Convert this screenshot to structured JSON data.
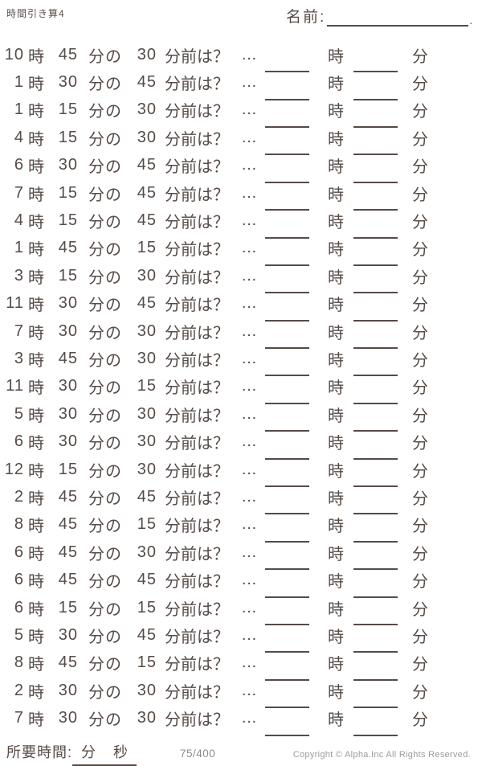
{
  "colors": {
    "ink": "#554b47",
    "muted": "#9c9c9c"
  },
  "header": {
    "title": "時間引き算4",
    "name_label": "名前:",
    "name_period": "."
  },
  "labels": {
    "hour_unit": "時",
    "minute_no": "分の",
    "minutes_before": "分前は？",
    "ellipsis": "…",
    "minute_unit": "分"
  },
  "problems": [
    {
      "hour": 10,
      "minute": 45,
      "subtract": 30
    },
    {
      "hour": 1,
      "minute": 30,
      "subtract": 45
    },
    {
      "hour": 1,
      "minute": 15,
      "subtract": 30
    },
    {
      "hour": 4,
      "minute": 15,
      "subtract": 30
    },
    {
      "hour": 6,
      "minute": 30,
      "subtract": 45
    },
    {
      "hour": 7,
      "minute": 15,
      "subtract": 45
    },
    {
      "hour": 4,
      "minute": 15,
      "subtract": 45
    },
    {
      "hour": 1,
      "minute": 45,
      "subtract": 15
    },
    {
      "hour": 3,
      "minute": 15,
      "subtract": 30
    },
    {
      "hour": 11,
      "minute": 30,
      "subtract": 45
    },
    {
      "hour": 7,
      "minute": 30,
      "subtract": 30
    },
    {
      "hour": 3,
      "minute": 45,
      "subtract": 30
    },
    {
      "hour": 11,
      "minute": 30,
      "subtract": 15
    },
    {
      "hour": 5,
      "minute": 30,
      "subtract": 30
    },
    {
      "hour": 6,
      "minute": 30,
      "subtract": 30
    },
    {
      "hour": 12,
      "minute": 15,
      "subtract": 30
    },
    {
      "hour": 2,
      "minute": 45,
      "subtract": 45
    },
    {
      "hour": 8,
      "minute": 45,
      "subtract": 15
    },
    {
      "hour": 6,
      "minute": 45,
      "subtract": 30
    },
    {
      "hour": 6,
      "minute": 45,
      "subtract": 45
    },
    {
      "hour": 6,
      "minute": 15,
      "subtract": 15
    },
    {
      "hour": 5,
      "minute": 30,
      "subtract": 45
    },
    {
      "hour": 8,
      "minute": 45,
      "subtract": 15
    },
    {
      "hour": 2,
      "minute": 30,
      "subtract": 30
    },
    {
      "hour": 7,
      "minute": 30,
      "subtract": 30
    }
  ],
  "footer": {
    "time_label": "所要時間:",
    "minutes_label": "分",
    "seconds_label": "秒",
    "page_counter": "75/400",
    "copyright": "Copyright © Alpha.Inc All Rights Reserved."
  }
}
